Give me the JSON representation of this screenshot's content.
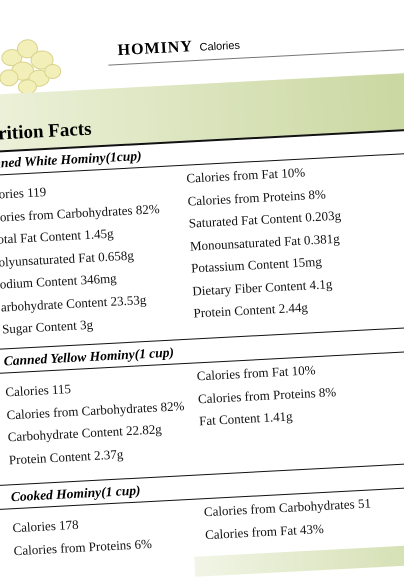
{
  "header": {
    "title": "HOMINY",
    "subtitle": "Calories"
  },
  "facts_title": "trition Facts",
  "sections": [
    {
      "heading": "nned White Hominy(1cup)",
      "left": [
        "lories 119",
        "lories from Carbohydrates 82%",
        "otal Fat Content 1.45g",
        "olyunsaturated Fat  0.658g",
        "odium Content 346mg",
        "arbohydrate Content 23.53g",
        "Sugar Content 3g"
      ],
      "right": [
        "Calories from Fat 10%",
        "Calories from Proteins 8%",
        "Saturated Fat Content 0.203g",
        "Monounsaturated Fat 0.381g",
        "Potassium Content 15mg",
        "Dietary Fiber Content  4.1g",
        "Protein Content  2.44g"
      ]
    },
    {
      "heading": "Canned Yellow Hominy(1 cup)",
      "left": [
        "Calories 115",
        "Calories from Carbohydrates 82%",
        "Carbohydrate Content 22.82g",
        "Protein Content 2.37g"
      ],
      "right": [
        "Calories from Fat 10%",
        "Calories from Proteins 8%",
        "Fat Content 1.41g"
      ]
    },
    {
      "heading": "Cooked Hominy(1 cup)",
      "left": [
        "Calories 178",
        "Calories from Proteins 6%"
      ],
      "right": [
        "Calories from Carbohydrates 51",
        "Calories from Fat 43%"
      ]
    }
  ]
}
